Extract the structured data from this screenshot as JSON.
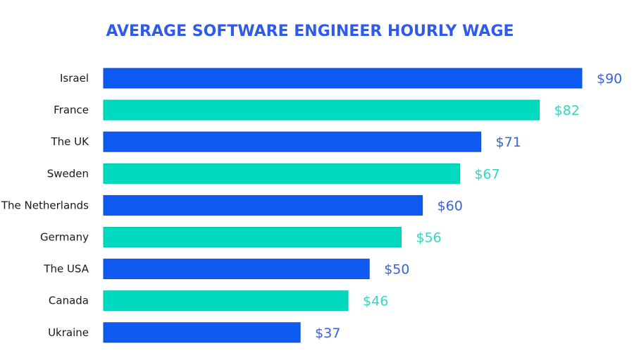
{
  "chart_data": {
    "type": "bar",
    "orientation": "horizontal",
    "title": "AVERAGE SOFTWARE ENGINEER HOURLY WAGE",
    "categories": [
      "Israel",
      "France",
      "The UK",
      "Sweden",
      "The Netherlands",
      "Germany",
      "The USA",
      "Canada",
      "Ukraine"
    ],
    "values": [
      90,
      82,
      71,
      67,
      60,
      56,
      50,
      46,
      37
    ],
    "value_labels": [
      "$90",
      "$82",
      "$71",
      "$67",
      "$60",
      "$56",
      "$50",
      "$46",
      "$37"
    ],
    "xlim": [
      0,
      90
    ],
    "grid": false,
    "legend": "none"
  },
  "colors": {
    "title": "#2f5bea",
    "bar_primary": "#0f5bf2",
    "bar_secondary": "#00dbc0",
    "label_primary": "#3a62d9",
    "label_secondary": "#33d6c0"
  }
}
